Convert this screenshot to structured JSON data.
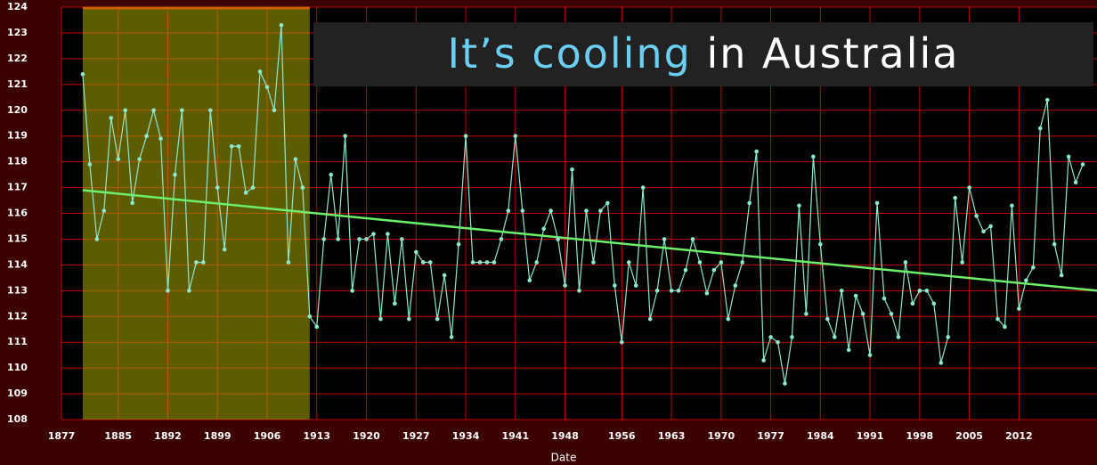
{
  "chart_data": {
    "type": "line",
    "title_parts": [
      "It’s cooling",
      "in Australia"
    ],
    "x_label": "Date",
    "x": [
      1880,
      1881,
      1882,
      1883,
      1884,
      1885,
      1886,
      1887,
      1888,
      1889,
      1890,
      1891,
      1892,
      1893,
      1894,
      1895,
      1896,
      1897,
      1898,
      1899,
      1900,
      1901,
      1902,
      1903,
      1904,
      1905,
      1906,
      1907,
      1908,
      1909,
      1910,
      1911,
      1912,
      1913,
      1914,
      1915,
      1916,
      1917,
      1918,
      1919,
      1920,
      1921,
      1922,
      1923,
      1924,
      1925,
      1926,
      1927,
      1928,
      1929,
      1930,
      1931,
      1932,
      1933,
      1934,
      1935,
      1936,
      1937,
      1938,
      1939,
      1940,
      1941,
      1942,
      1943,
      1944,
      1945,
      1946,
      1947,
      1948,
      1949,
      1950,
      1951,
      1952,
      1953,
      1954,
      1955,
      1956,
      1957,
      1958,
      1959,
      1960,
      1961,
      1962,
      1963,
      1964,
      1965,
      1966,
      1967,
      1968,
      1969,
      1970,
      1971,
      1972,
      1973,
      1974,
      1975,
      1976,
      1977,
      1978,
      1979,
      1980,
      1981,
      1982,
      1983,
      1984,
      1985,
      1986,
      1987,
      1988,
      1989,
      1990,
      1991,
      1992,
      1993,
      1994,
      1995,
      1996,
      1997,
      1998,
      1999,
      2000,
      2001,
      2002,
      2003,
      2004,
      2005,
      2006,
      2007,
      2008,
      2009,
      2010,
      2011,
      2012,
      2013,
      2014,
      2015,
      2016,
      2017,
      2018,
      2019,
      2020,
      2021
    ],
    "values": [
      121.4,
      117.9,
      115,
      116.1,
      119.7,
      118.1,
      120,
      116.4,
      118.1,
      119,
      120,
      118.9,
      113,
      117.5,
      120,
      113,
      114.1,
      114.1,
      120,
      117,
      114.6,
      118.6,
      118.6,
      116.8,
      117,
      121.5,
      120.9,
      120,
      123.3,
      114.1,
      118.1,
      117,
      112,
      111.6,
      115,
      117.5,
      115,
      119,
      113,
      115,
      115,
      115.2,
      111.9,
      115.2,
      112.5,
      115,
      111.9,
      114.5,
      114.1,
      114.1,
      111.9,
      113.6,
      111.2,
      114.8,
      119,
      114.1,
      114.1,
      114.1,
      114.1,
      115,
      116.1,
      119,
      116.1,
      113.4,
      114.1,
      115.4,
      116.1,
      115,
      113.2,
      117.7,
      113,
      116.1,
      114.1,
      116.1,
      116.4,
      113.2,
      111,
      114.1,
      113.2,
      117,
      111.9,
      113,
      115,
      113,
      113,
      113.8,
      115,
      114.1,
      112.9,
      113.8,
      114.1,
      111.9,
      113.2,
      114.1,
      116.4,
      118.4,
      110.3,
      111.2,
      111,
      109.4,
      111.2,
      116.3,
      112.1,
      118.2,
      114.8,
      111.9,
      111.2,
      113,
      110.7,
      112.8,
      112.1,
      110.5,
      116.4,
      112.7,
      112.1,
      111.2,
      114.1,
      112.5,
      113,
      113,
      112.5,
      110.2,
      111.2,
      116.6,
      114.1,
      117,
      115.9,
      115.3,
      115.5,
      111.9,
      111.6,
      116.3,
      112.3,
      113.4,
      113.9,
      119.3,
      120.4,
      114.8,
      113.6,
      118.2,
      117.2,
      117.9
    ],
    "color": "#8fe8cc",
    "trend": {
      "x": [
        1880,
        2023
      ],
      "values": [
        116.9,
        113.0
      ],
      "color": "#6cf06c"
    },
    "highlight": {
      "x0": 1880,
      "x1": 1912,
      "color": "#a8a800"
    },
    "xlim": [
      1877,
      2023
    ],
    "ylim": [
      108,
      124
    ],
    "xticks": [
      1877,
      1885,
      1892,
      1899,
      1906,
      1913,
      1920,
      1927,
      1934,
      1941,
      1948,
      1956,
      1963,
      1970,
      1977,
      1984,
      1991,
      1998,
      2005,
      2012
    ],
    "yticks": [
      108,
      109,
      110,
      111,
      112,
      113,
      114,
      115,
      116,
      117,
      118,
      119,
      120,
      121,
      122,
      123,
      124
    ],
    "grid": true,
    "grid_color": "#c40000"
  }
}
